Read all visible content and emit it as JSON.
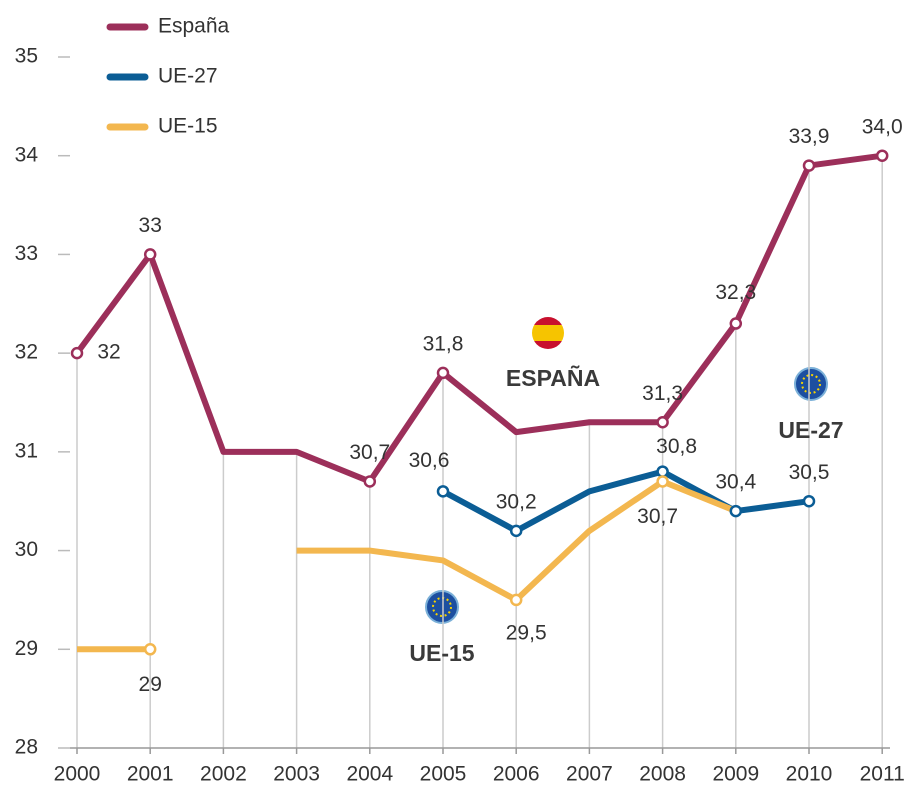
{
  "chart_data": {
    "type": "line",
    "categories": [
      "2000",
      "2001",
      "2002",
      "2003",
      "2004",
      "2005",
      "2006",
      "2007",
      "2008",
      "2009",
      "2010",
      "2011"
    ],
    "series": [
      {
        "name": "España",
        "color": "#9c2f5a",
        "values": [
          32,
          33,
          31,
          31,
          30.7,
          31.8,
          31.2,
          31.3,
          31.3,
          32.3,
          33.9,
          34.0
        ],
        "value_labels": [
          "32",
          "33",
          null,
          null,
          "30,7",
          "31,8",
          null,
          null,
          "31,3",
          "32,3",
          "33,9",
          "34,0"
        ]
      },
      {
        "name": "UE-27",
        "color": "#0b5d95",
        "values": [
          null,
          null,
          null,
          null,
          null,
          30.6,
          30.2,
          30.6,
          30.8,
          30.4,
          30.5,
          null
        ],
        "value_labels": [
          null,
          null,
          null,
          null,
          null,
          "30,6",
          "30,2",
          null,
          "30,8",
          "30,4",
          "30,5",
          null
        ]
      },
      {
        "name": "UE-15",
        "color": "#f3b74f",
        "values": [
          29,
          29,
          null,
          30,
          30,
          29.9,
          29.5,
          30.2,
          30.7,
          30.4,
          null,
          null
        ],
        "value_labels": [
          null,
          "29",
          null,
          null,
          null,
          null,
          "29,5",
          null,
          "30,7",
          null,
          null,
          null
        ]
      }
    ],
    "ylim": [
      28,
      35
    ],
    "yticks": [
      28,
      29,
      30,
      31,
      32,
      33,
      34,
      35
    ],
    "annotations": [
      "ESPAÑA",
      "UE-27",
      "UE-15"
    ]
  }
}
